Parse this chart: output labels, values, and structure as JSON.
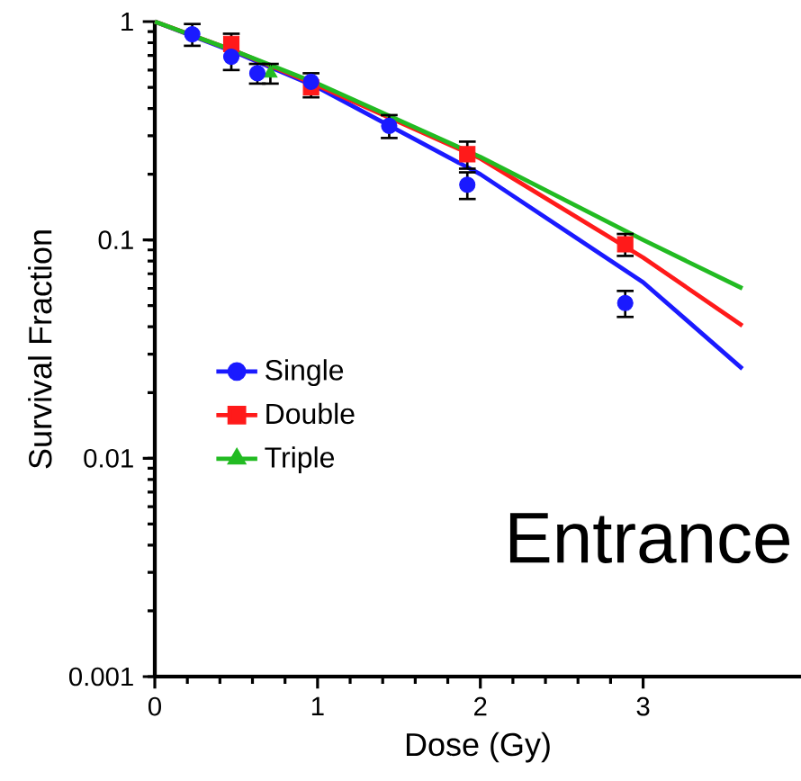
{
  "chart_data": {
    "type": "scatter",
    "xlabel": "Dose (Gy)",
    "ylabel": "Survival Fraction",
    "log": "y",
    "xlim": [
      0,
      3.97
    ],
    "ylim": [
      0.001,
      1
    ],
    "xticks": [
      0,
      1,
      2,
      3
    ],
    "yticks": [
      0.001,
      0.01,
      0.1,
      1
    ],
    "grid": false,
    "legend": "left",
    "line_style": "solid",
    "annotations": [
      "Entrance"
    ],
    "series": [
      {
        "name": "Single",
        "type": "scatter",
        "marker": "circle",
        "color": "#1a1aff",
        "x": [
          0.23,
          0.47,
          0.63,
          0.96,
          1.44,
          1.92,
          2.89
        ],
        "values": [
          0.875,
          0.69,
          0.58,
          0.53,
          0.333,
          0.179,
          0.0514
        ],
        "errors": [
          0.1,
          null,
          0.06,
          null,
          0.04,
          0.025,
          0.007
        ]
      },
      {
        "name": "Double",
        "type": "scatter",
        "marker": "square",
        "color": "#ff1a1a",
        "x": [
          0.47,
          0.96,
          1.92,
          2.89
        ],
        "values": [
          0.79,
          0.5,
          0.247,
          0.0955
        ],
        "errors": [
          [
            0.6,
            0.88
          ],
          [
            0.45,
            0.58
          ],
          0.035,
          0.011
        ]
      },
      {
        "name": "Triple",
        "type": "scatter",
        "marker": "triangle",
        "color": "#22bb22",
        "x": [
          0.71
        ],
        "values": [
          0.58
        ],
        "errors": [
          0.06
        ]
      },
      {
        "type": "line",
        "marker": "none",
        "color": "#1a1aff",
        "x": [
          0,
          0.5,
          1,
          2,
          3,
          3.61
        ],
        "values": [
          1,
          0.72,
          0.5,
          0.2,
          0.064,
          0.0257
        ]
      },
      {
        "type": "line",
        "marker": "none",
        "color": "#ff1a1a",
        "x": [
          0,
          0.5,
          1,
          2,
          3,
          3.61
        ],
        "values": [
          1,
          0.73,
          0.51,
          0.236,
          0.083,
          0.0405
        ]
      },
      {
        "type": "line",
        "marker": "none",
        "color": "#22bb22",
        "x": [
          0,
          0.5,
          1,
          2,
          3,
          3.61
        ],
        "values": [
          1,
          0.73,
          0.52,
          0.24,
          0.1,
          0.06
        ]
      }
    ]
  }
}
